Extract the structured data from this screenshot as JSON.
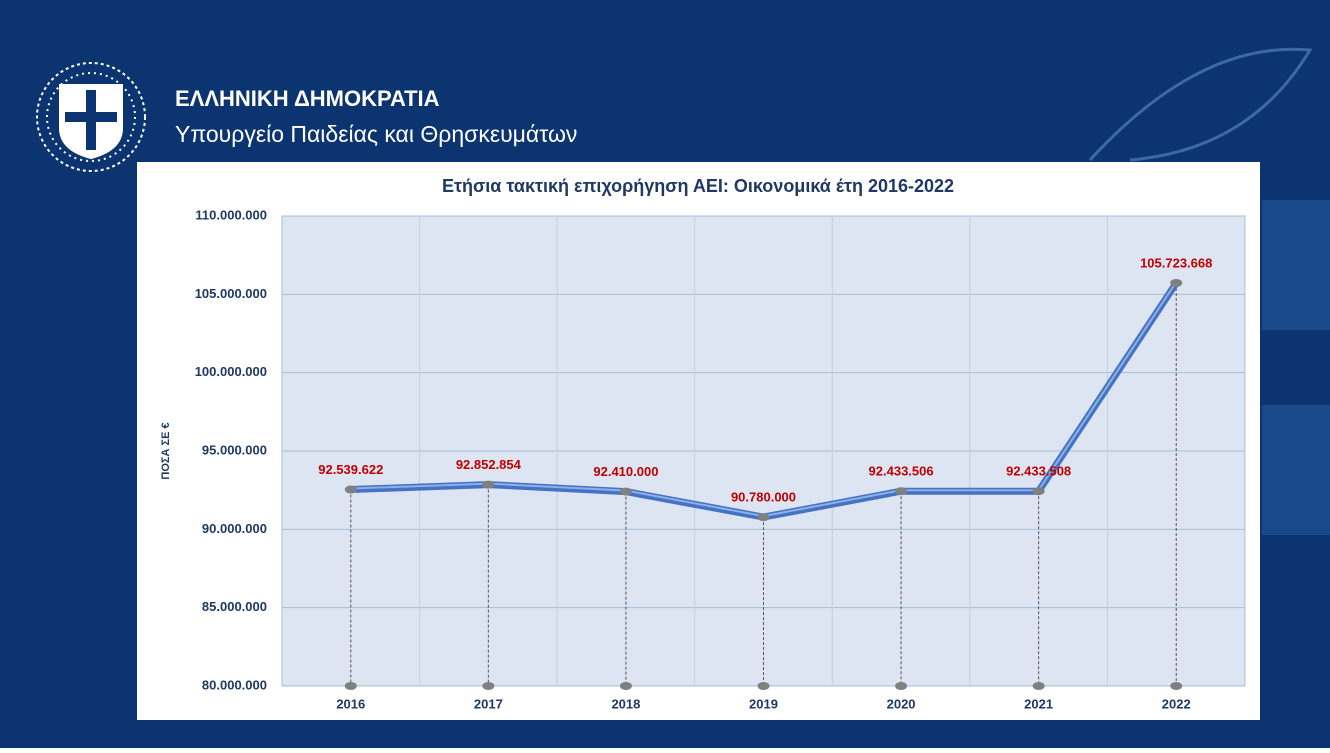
{
  "header": {
    "title": "ΕΛΛΗΝΙΚΗ ΔΗΜΟΚΡΑΤΙΑ",
    "subtitle": "Υπουργείο Παιδείας και Θρησκευμάτων"
  },
  "chart_data": {
    "type": "line",
    "title": "Ετήσια τακτική επιχορήγηση ΑΕΙ:  Οικονομικά έτη 2016-2022",
    "y_label": "ΠΟΣΑ ΣΕ €",
    "categories": [
      "2016",
      "2017",
      "2018",
      "2019",
      "2020",
      "2021",
      "2022"
    ],
    "values": [
      92539622,
      92852854,
      92410000,
      90780000,
      92433506,
      92433508,
      105723668
    ],
    "value_labels": [
      "92.539.622",
      "92.852.854",
      "92.410.000",
      "90.780.000",
      "92.433.506",
      "92.433.508",
      "105.723.668"
    ],
    "color": "#4472c4",
    "ylim": [
      80000000,
      110000000
    ],
    "yticks": [
      {
        "value": 80000000,
        "label": "80.000.000"
      },
      {
        "value": 85000000,
        "label": "85.000.000"
      },
      {
        "value": 90000000,
        "label": "90.000.000"
      },
      {
        "value": 95000000,
        "label": "95.000.000"
      },
      {
        "value": 100000000,
        "label": "100.000.000"
      },
      {
        "value": 105000000,
        "label": "105.000.000"
      },
      {
        "value": 110000000,
        "label": "110.000.000"
      }
    ],
    "grid": true
  }
}
